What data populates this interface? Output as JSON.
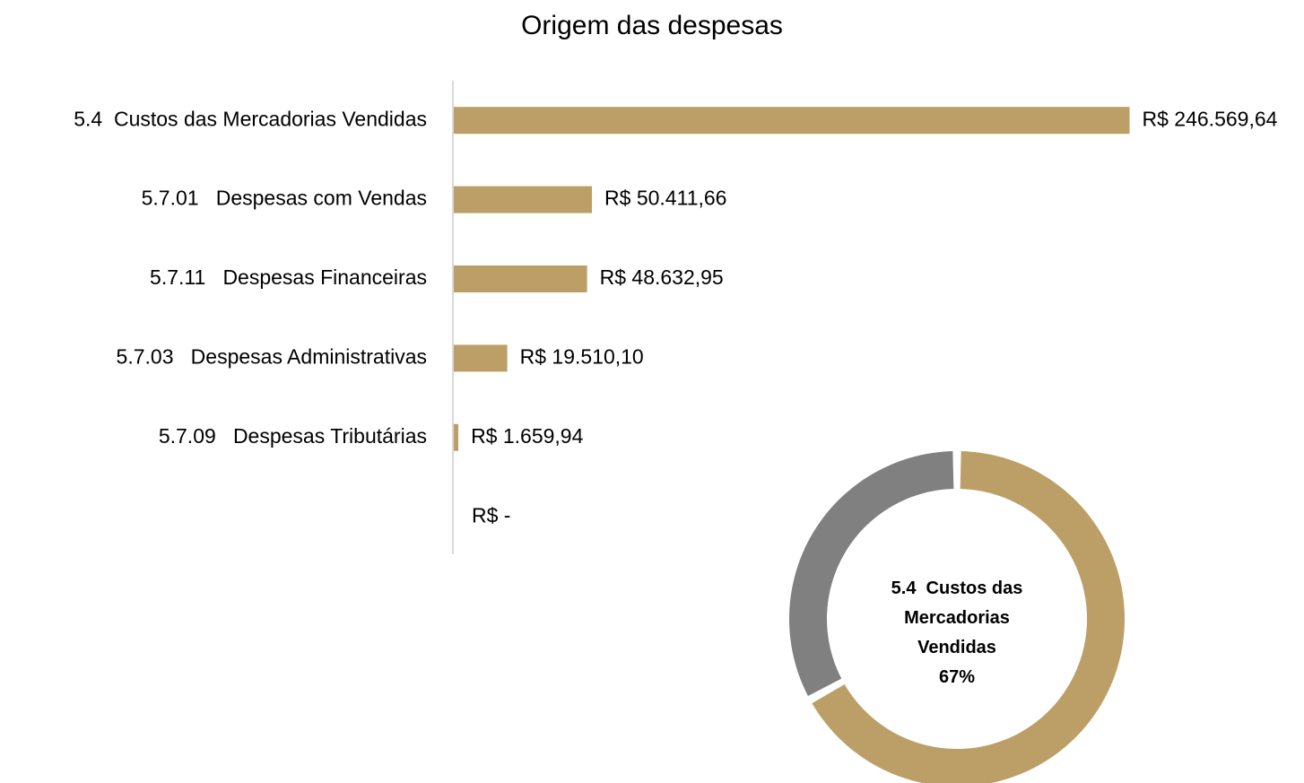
{
  "chart_data": [
    {
      "type": "hbar",
      "title": "Origem das despesas",
      "categories": [
        "5.4  Custos das Mercadorias Vendidas",
        "5.7.01   Despesas com Vendas",
        "5.7.11   Despesas Financeiras",
        "5.7.03   Despesas Administrativas",
        "5.7.09   Despesas Tributárias",
        null
      ],
      "values": [
        246569.64,
        50411.66,
        48632.95,
        19510.1,
        1659.94,
        0
      ],
      "value_labels": [
        "R$ 246.569,64",
        "R$ 50.411,66",
        "R$ 48.632,95",
        "R$ 19.510,10",
        "R$ 1.659,94",
        "R$ -"
      ],
      "color": "#bc9f67",
      "xlim": [
        0,
        250000
      ]
    },
    {
      "type": "donut",
      "categories": [
        "5.4  Custos das Mercadorias Vendidas",
        null
      ],
      "values": [
        67,
        33
      ],
      "value_labels": [
        "67%",
        null
      ],
      "colors": [
        "#bc9f67",
        "#808080"
      ]
    }
  ]
}
